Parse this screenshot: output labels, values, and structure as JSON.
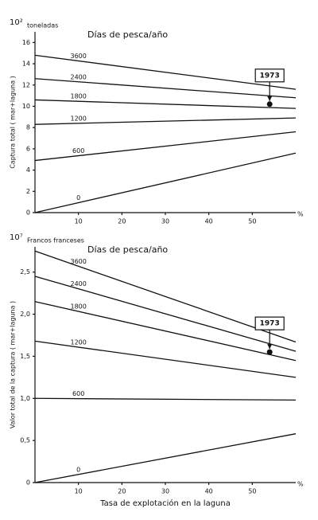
{
  "chart_data": [
    {
      "type": "line",
      "scale": "10²",
      "unit": "toneladas",
      "title": "Días de pesca/año",
      "ylabel": "Captura total ( mar+laguna )",
      "x_unit": "%",
      "x": [
        0,
        60
      ],
      "xlim": [
        0,
        60
      ],
      "xticks": [
        10,
        20,
        30,
        40,
        50
      ],
      "ylim": [
        0,
        17
      ],
      "yticks": [
        0,
        2,
        4,
        6,
        8,
        10,
        12,
        14,
        16
      ],
      "series": [
        {
          "name": "3600",
          "color": "#111111",
          "values": [
            14.8,
            11.6
          ]
        },
        {
          "name": "2400",
          "color": "#111111",
          "values": [
            12.6,
            10.8
          ]
        },
        {
          "name": "1800",
          "color": "#111111",
          "values": [
            10.6,
            9.8
          ]
        },
        {
          "name": "1200",
          "color": "#111111",
          "values": [
            8.3,
            8.9
          ]
        },
        {
          "name": "600",
          "color": "#111111",
          "values": [
            4.9,
            7.6
          ]
        },
        {
          "name": "0",
          "color": "#111111",
          "values": [
            0,
            5.6
          ]
        }
      ],
      "annotation": {
        "text": "1973",
        "x": 54,
        "y": 10.2
      }
    },
    {
      "type": "line",
      "scale": "10⁷",
      "unit": "Francos franceses",
      "title": "Días de pesca/año",
      "ylabel": "Valor total de la captura ( mar+laguna )",
      "xlabel": "Tasa de explotación en la laguna",
      "x_unit": "%",
      "x": [
        0,
        60
      ],
      "xlim": [
        0,
        60
      ],
      "xticks": [
        10,
        20,
        30,
        40,
        50
      ],
      "ylim": [
        0,
        2.8
      ],
      "yticks": [
        0,
        {
          "value": 0.5,
          "label": "0,5"
        },
        {
          "value": 1,
          "label": "1,0"
        },
        {
          "value": 1.5,
          "label": "1,5"
        },
        {
          "value": 2,
          "label": "2,0"
        },
        {
          "value": 2.5,
          "label": "2,5"
        }
      ],
      "series": [
        {
          "name": "3600",
          "color": "#111111",
          "values": [
            2.75,
            1.67
          ]
        },
        {
          "name": "2400",
          "color": "#111111",
          "values": [
            2.45,
            1.56
          ]
        },
        {
          "name": "1800",
          "color": "#111111",
          "values": [
            2.15,
            1.45
          ]
        },
        {
          "name": "1200",
          "color": "#111111",
          "values": [
            1.68,
            1.25
          ]
        },
        {
          "name": "600",
          "color": "#111111",
          "values": [
            1.0,
            0.98
          ]
        },
        {
          "name": "0",
          "color": "#111111",
          "values": [
            0,
            0.58
          ]
        }
      ],
      "annotation": {
        "text": "1973",
        "x": 54,
        "y": 1.55
      }
    }
  ]
}
